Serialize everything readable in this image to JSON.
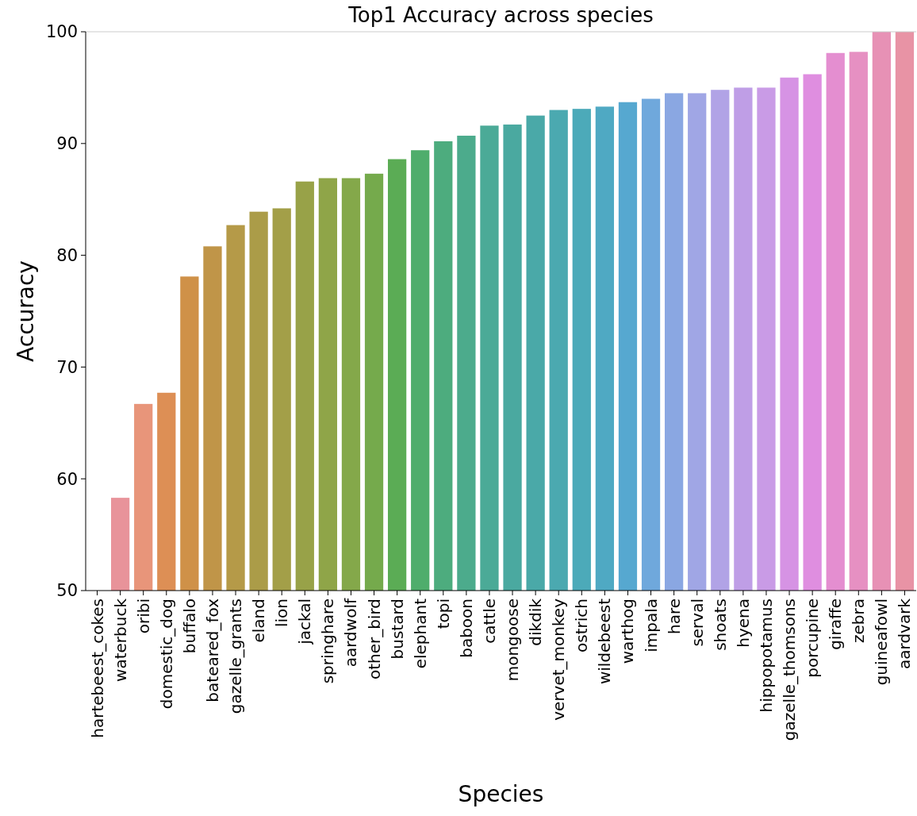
{
  "chart_data": {
    "type": "bar",
    "title": "Top1 Accuracy across species",
    "xlabel": "Species",
    "ylabel": "Accuracy",
    "categories": [
      "hartebeest_cokes",
      "waterbuck",
      "oribi",
      "domestic_dog",
      "buffalo",
      "bateared_fox",
      "gazelle_grants",
      "eland",
      "lion",
      "jackal",
      "springhare",
      "aardwolf",
      "other_bird",
      "bustard",
      "elephant",
      "topi",
      "baboon",
      "cattle",
      "mongoose",
      "dikdik",
      "vervet_monkey",
      "ostrich",
      "wildebeest",
      "warthog",
      "impala",
      "hare",
      "serval",
      "shoats",
      "hyena",
      "hippopotamus",
      "gazelle_thomsons",
      "porcupine",
      "giraffe",
      "zebra",
      "guineafowl",
      "aardvark"
    ],
    "values": [
      null,
      58.3,
      66.7,
      67.7,
      78.1,
      80.8,
      82.7,
      83.9,
      84.2,
      86.6,
      86.9,
      86.9,
      87.3,
      88.6,
      89.4,
      90.2,
      90.7,
      91.6,
      91.7,
      92.5,
      93.0,
      93.1,
      93.3,
      93.7,
      94.0,
      94.5,
      94.5,
      94.8,
      95.0,
      95.0,
      95.9,
      96.2,
      98.1,
      98.2,
      100,
      100
    ],
    "colors": [
      null,
      "#e8939a",
      "#e8957a",
      "#dd8f55",
      "#cf9148",
      "#c09548",
      "#b59a48",
      "#ab9c48",
      "#a39f48",
      "#98a248",
      "#8fa548",
      "#84a84a",
      "#75aa4c",
      "#5bac55",
      "#4fad6c",
      "#4dac7e",
      "#4cab8c",
      "#4baa97",
      "#4aa9a0",
      "#4aa9a8",
      "#4ba9b0",
      "#4caab9",
      "#4fa9c3",
      "#56a8d0",
      "#6fa8dc",
      "#8aa7e2",
      "#a0a6e5",
      "#b1a3e6",
      "#bf9ee6",
      "#c99be6",
      "#d693e4",
      "#df8ee0",
      "#e48ed0",
      "#e690c2",
      "#e791b5",
      "#e893a5"
    ],
    "ylim": [
      50,
      100
    ],
    "yticks": [
      50,
      60,
      70,
      80,
      90,
      100
    ],
    "grid": false
  }
}
